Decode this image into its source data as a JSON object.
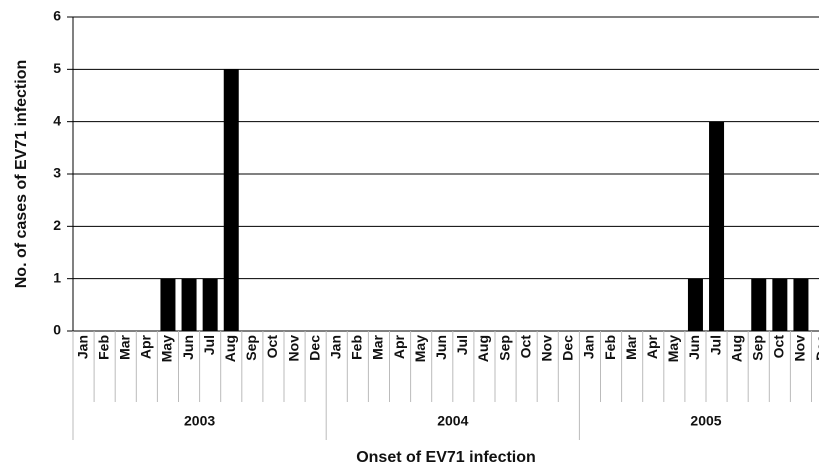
{
  "chart_data": {
    "type": "bar",
    "x_label": "Onset of EV71 infection",
    "y_label": "No. of cases of EV71 infection",
    "categories": [
      "Jan",
      "Feb",
      "Mar",
      "Apr",
      "May",
      "Jun",
      "Jul",
      "Aug",
      "Sep",
      "Oct",
      "Nov",
      "Dec",
      "Jan",
      "Feb",
      "Mar",
      "Apr",
      "May",
      "Jun",
      "Jul",
      "Aug",
      "Sep",
      "Oct",
      "Nov",
      "Dec",
      "Jan",
      "Feb",
      "Mar",
      "Apr",
      "May",
      "Jun",
      "Jul",
      "Aug",
      "Sep",
      "Oct",
      "Nov",
      "Dec"
    ],
    "groups": [
      "2003",
      "2004",
      "2005"
    ],
    "values": [
      0,
      0,
      0,
      0,
      1,
      1,
      1,
      5,
      0,
      0,
      0,
      0,
      0,
      0,
      0,
      0,
      0,
      0,
      0,
      0,
      0,
      0,
      0,
      0,
      0,
      0,
      0,
      0,
      0,
      1,
      4,
      0,
      1,
      1,
      1,
      0
    ],
    "color": "#000000",
    "ylim": [
      0,
      6
    ],
    "yticks": [
      0,
      1,
      2,
      3,
      4,
      5,
      6
    ],
    "grid": true
  }
}
